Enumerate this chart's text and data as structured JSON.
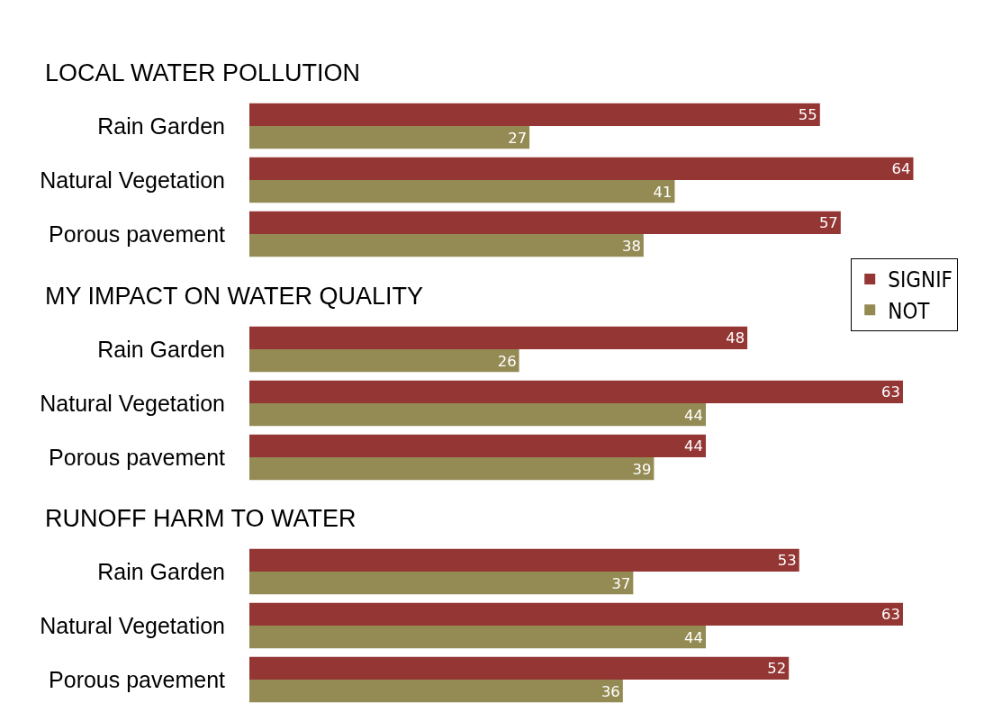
{
  "chart_data": [
    {
      "type": "bar",
      "orientation": "horizontal",
      "title": "LOCAL WATER POLLUTION",
      "categories": [
        "Rain Garden",
        "Natural Vegetation",
        "Porous pavement"
      ],
      "data_labels": true,
      "legend": "right",
      "series": [
        {
          "name": "SIGNIF",
          "color": "#943634",
          "values": [
            55,
            64,
            57
          ]
        },
        {
          "name": "NOT",
          "color": "#948a54",
          "values": [
            27,
            41,
            38
          ]
        }
      ]
    },
    {
      "type": "bar",
      "orientation": "horizontal",
      "title": "MY IMPACT ON WATER QUALITY",
      "categories": [
        "Rain Garden",
        "Natural Vegetation",
        "Porous pavement"
      ],
      "data_labels": true,
      "series": [
        {
          "color": "#943634",
          "values": [
            48,
            63,
            44
          ]
        },
        {
          "color": "#948a54",
          "values": [
            26,
            44,
            39
          ]
        }
      ]
    },
    {
      "type": "bar",
      "orientation": "horizontal",
      "title": "RUNOFF HARM TO WATER",
      "categories": [
        "Rain Garden",
        "Natural Vegetation",
        "Porous pavement"
      ],
      "data_labels": true,
      "series": [
        {
          "color": "#943634",
          "values": [
            53,
            63,
            52
          ]
        },
        {
          "color": "#948a54",
          "values": [
            37,
            44,
            36
          ]
        }
      ]
    }
  ]
}
